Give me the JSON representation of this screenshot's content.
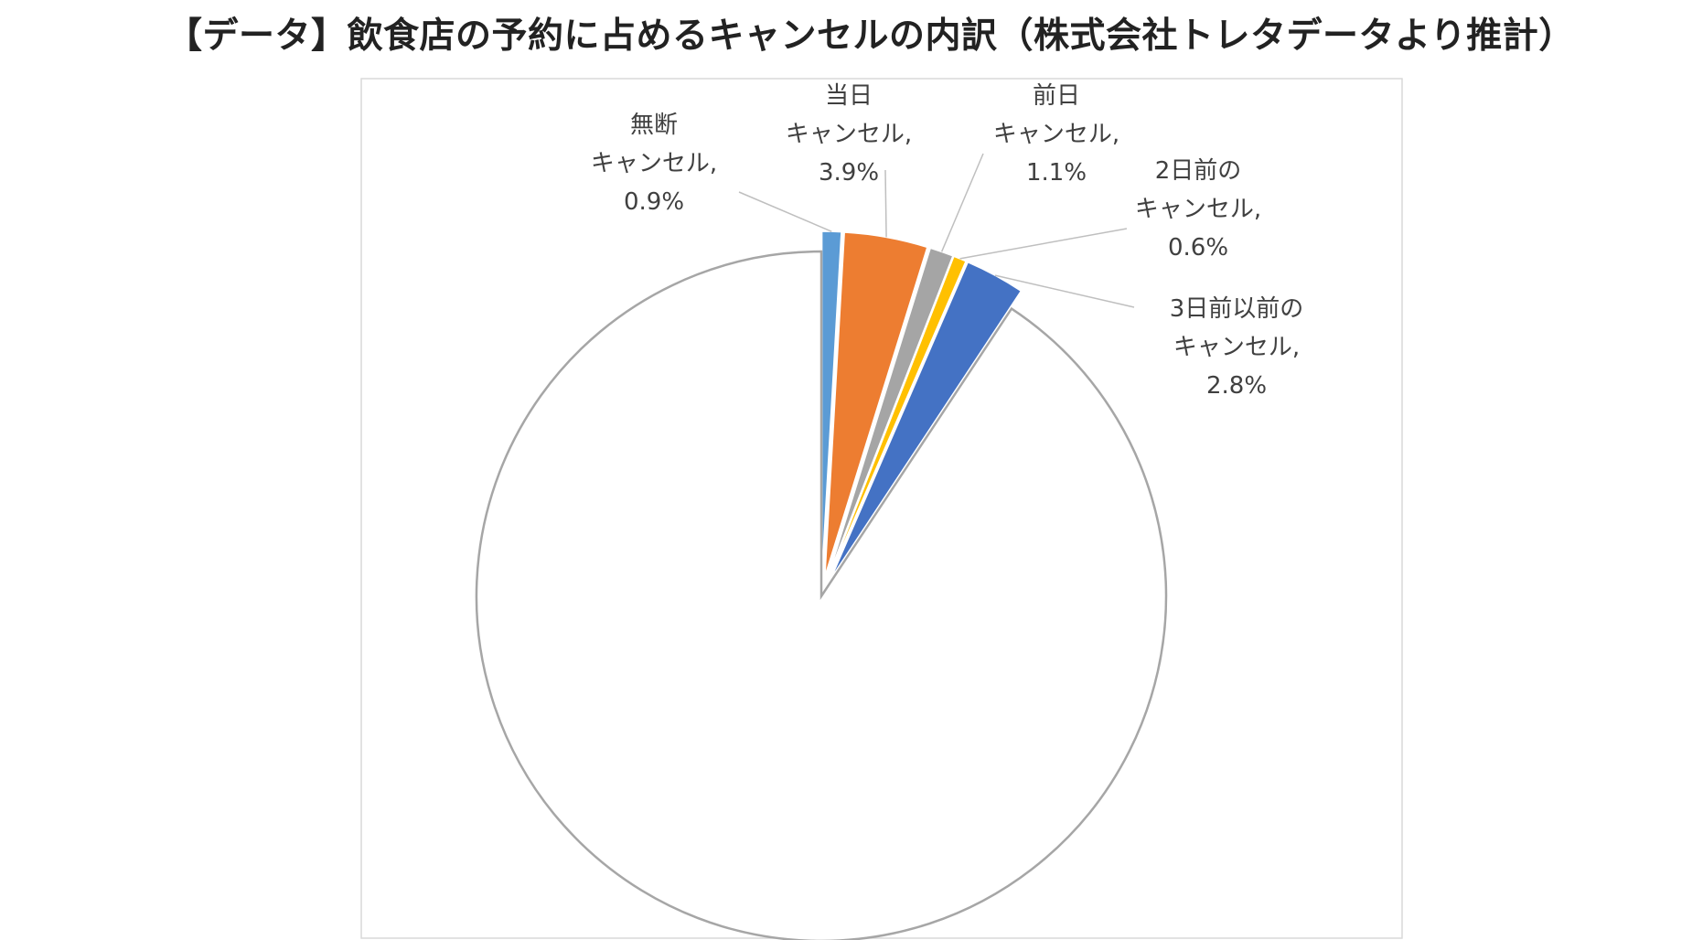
{
  "chart_data": {
    "type": "pie",
    "title": "【データ】飲食店の予約に占めるキャンセルの内訳（株式会社トレタデータより推計）",
    "slices": [
      {
        "label_lines": [
          "無断",
          "キャンセル,"
        ],
        "value_text": "0.9%",
        "value": 0.9,
        "color": "#5b9bd5",
        "exploded": true
      },
      {
        "label_lines": [
          "当日",
          "キャンセル,"
        ],
        "value_text": "3.9%",
        "value": 3.9,
        "color": "#ed7d31",
        "exploded": true
      },
      {
        "label_lines": [
          "前日",
          "キャンセル,"
        ],
        "value_text": "1.1%",
        "value": 1.1,
        "color": "#a5a5a5",
        "exploded": true
      },
      {
        "label_lines": [
          "2日前の",
          "キャンセル,"
        ],
        "value_text": "0.6%",
        "value": 0.6,
        "color": "#ffc000",
        "exploded": true
      },
      {
        "label_lines": [
          "3日前以前の",
          "キャンセル,"
        ],
        "value_text": "2.8%",
        "value": 2.8,
        "color": "#4472c4",
        "exploded": true
      },
      {
        "label_lines": [],
        "value_text": "",
        "value": 90.7,
        "color": "#ffffff",
        "exploded": false
      }
    ],
    "legend": "none",
    "data_labels": "outside-with-leader-lines"
  }
}
